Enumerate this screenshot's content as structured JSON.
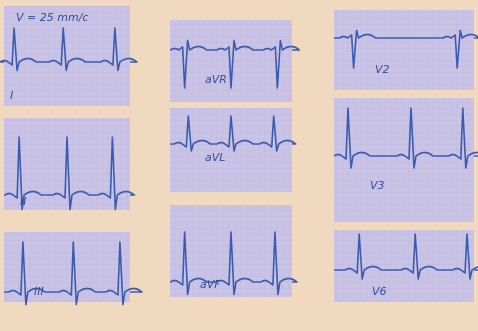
{
  "header": {
    "speed": "V = 25 mm/c"
  },
  "leads": [
    {
      "label": "I"
    },
    {
      "label": "II"
    },
    {
      "label": "III"
    },
    {
      "label": "aVR"
    },
    {
      "label": "aVL"
    },
    {
      "label": "aVF"
    },
    {
      "label": "V2"
    },
    {
      "label": "V3"
    },
    {
      "label": "V6"
    }
  ]
}
